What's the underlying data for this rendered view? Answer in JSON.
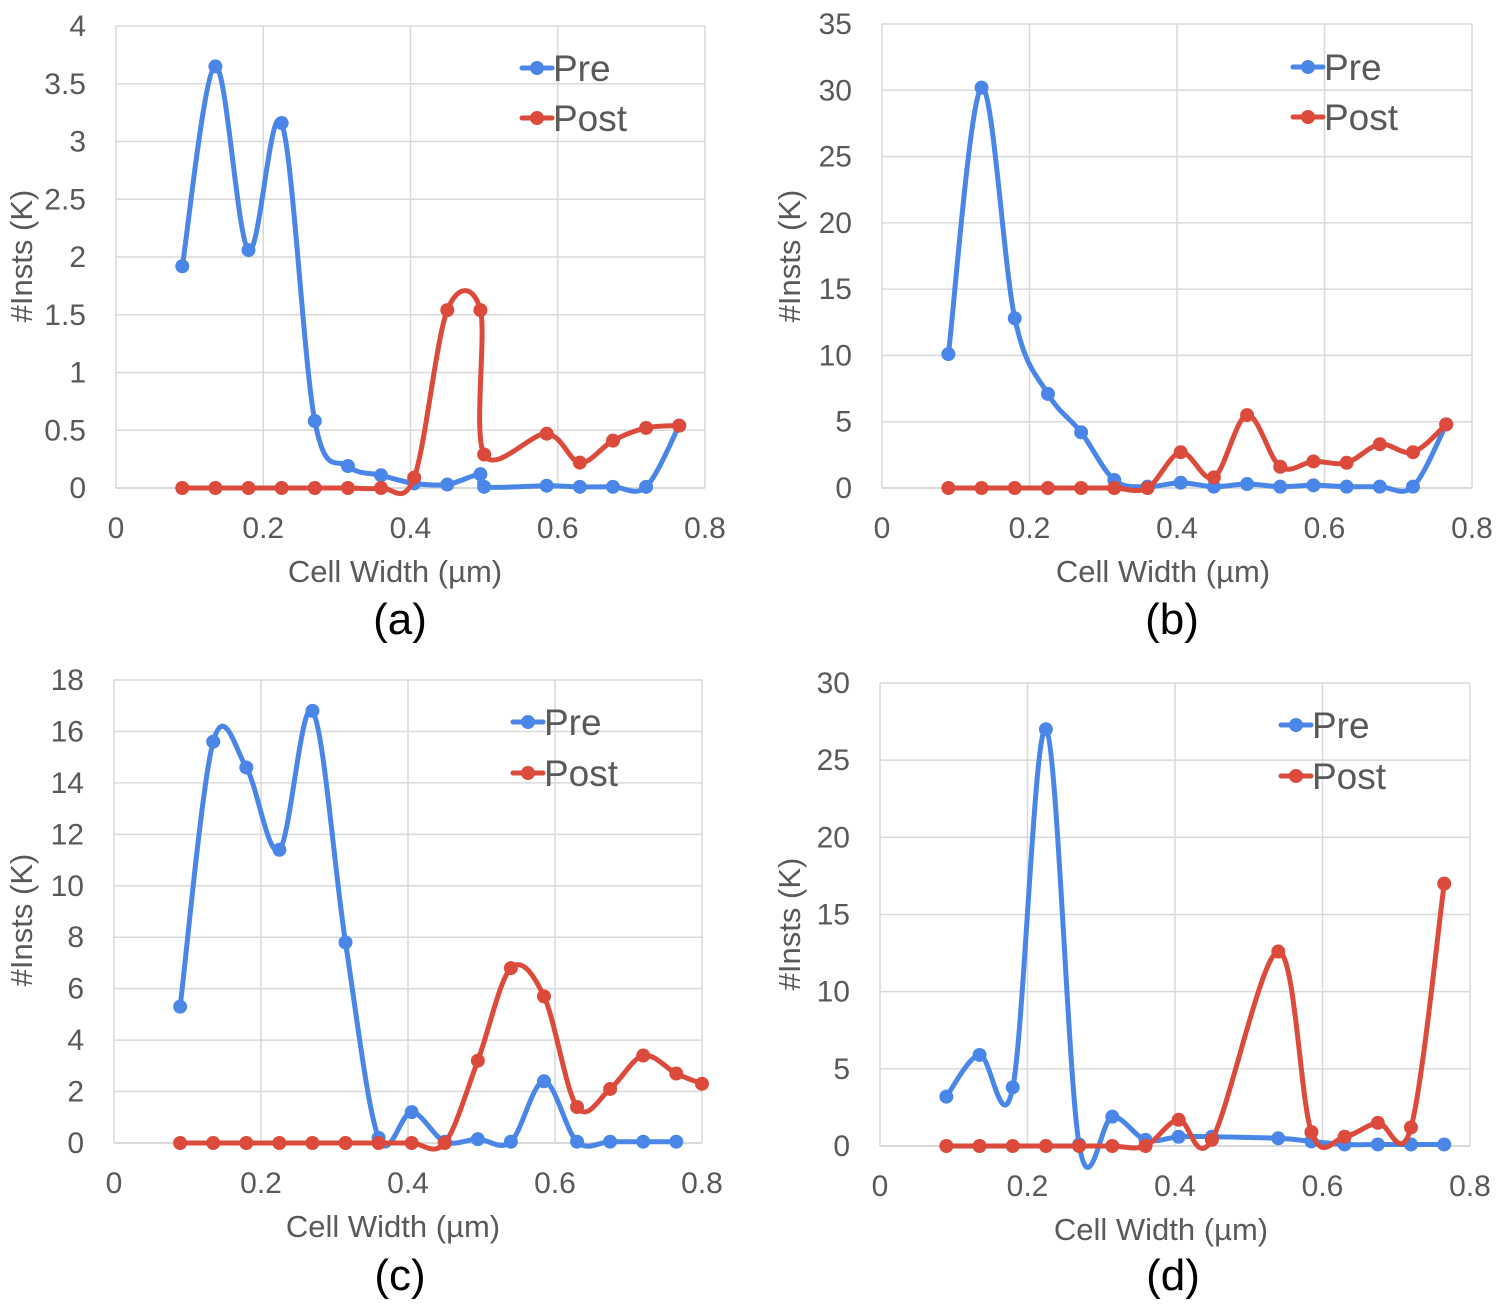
{
  "colors": {
    "pre": "#4a86e8",
    "post": "#dc4a3b"
  },
  "chart_data": [
    {
      "type": "line",
      "caption": "(a)",
      "xlabel": "Cell Width (µm)",
      "ylabel": "#Insts (K)",
      "xlim": [
        0,
        0.8
      ],
      "ylim": [
        0,
        4
      ],
      "x_ticks": [
        "0",
        "0.2",
        "0.4",
        "0.6",
        "0.8"
      ],
      "y_ticks": [
        "0",
        "0.5",
        "1",
        "1.5",
        "2",
        "2.5",
        "3",
        "3.5",
        "4"
      ],
      "legend": [
        "Pre",
        "Post"
      ],
      "series": [
        {
          "name": "Pre",
          "x": [
            0.09,
            0.135,
            0.18,
            0.225,
            0.27,
            0.315,
            0.36,
            0.405,
            0.45,
            0.495,
            0.5,
            0.585,
            0.63,
            0.675,
            0.72,
            0.765
          ],
          "y": [
            1.92,
            3.65,
            2.06,
            3.16,
            0.58,
            0.19,
            0.11,
            0.04,
            0.03,
            0.12,
            0.01,
            0.02,
            0.01,
            0.01,
            0.01,
            0.54
          ]
        },
        {
          "name": "Post",
          "x": [
            0.09,
            0.135,
            0.18,
            0.225,
            0.27,
            0.315,
            0.36,
            0.405,
            0.45,
            0.495,
            0.5,
            0.585,
            0.63,
            0.675,
            0.72,
            0.765
          ],
          "y": [
            0,
            0,
            0,
            0,
            0,
            0,
            0,
            0.09,
            1.54,
            1.54,
            0.29,
            0.47,
            0.22,
            0.41,
            0.52,
            0.54
          ]
        }
      ]
    },
    {
      "type": "line",
      "caption": "(b)",
      "xlabel": "Cell Width (µm)",
      "ylabel": "#Insts (K)",
      "xlim": [
        0,
        0.8
      ],
      "ylim": [
        0,
        35
      ],
      "x_ticks": [
        "0",
        "0.2",
        "0.4",
        "0.6",
        "0.8"
      ],
      "y_ticks": [
        "0",
        "5",
        "10",
        "15",
        "20",
        "25",
        "30",
        "35"
      ],
      "legend": [
        "Pre",
        "Post"
      ],
      "series": [
        {
          "name": "Pre",
          "x": [
            0.09,
            0.135,
            0.18,
            0.225,
            0.27,
            0.315,
            0.36,
            0.405,
            0.45,
            0.495,
            0.54,
            0.585,
            0.63,
            0.675,
            0.72,
            0.765
          ],
          "y": [
            10.1,
            30.2,
            12.8,
            7.1,
            4.2,
            0.6,
            0.1,
            0.4,
            0.1,
            0.3,
            0.1,
            0.2,
            0.1,
            0.1,
            0.1,
            4.8
          ]
        },
        {
          "name": "Post",
          "x": [
            0.09,
            0.135,
            0.18,
            0.225,
            0.27,
            0.315,
            0.36,
            0.405,
            0.45,
            0.495,
            0.54,
            0.585,
            0.63,
            0.675,
            0.72,
            0.765
          ],
          "y": [
            0,
            0,
            0,
            0,
            0,
            0,
            0,
            2.7,
            0.8,
            5.5,
            1.6,
            2.0,
            1.9,
            3.3,
            2.7,
            4.8
          ]
        }
      ]
    },
    {
      "type": "line",
      "caption": "(c)",
      "xlabel": "Cell Width (µm)",
      "ylabel": "#Insts (K)",
      "xlim": [
        0,
        0.8
      ],
      "ylim": [
        0,
        18
      ],
      "x_ticks": [
        "0",
        "0.2",
        "0.4",
        "0.6",
        "0.8"
      ],
      "y_ticks": [
        "0",
        "2",
        "4",
        "6",
        "8",
        "10",
        "12",
        "14",
        "16",
        "18"
      ],
      "legend": [
        "Pre",
        "Post"
      ],
      "series": [
        {
          "name": "Pre",
          "x": [
            0.09,
            0.135,
            0.18,
            0.225,
            0.27,
            0.315,
            0.36,
            0.405,
            0.45,
            0.495,
            0.54,
            0.585,
            0.63,
            0.675,
            0.72,
            0.765
          ],
          "y": [
            5.3,
            15.6,
            14.6,
            11.4,
            16.8,
            7.8,
            0.2,
            1.2,
            0.05,
            0.15,
            0.05,
            2.4,
            0.05,
            0.05,
            0.05,
            0.05
          ]
        },
        {
          "name": "Post",
          "x": [
            0.09,
            0.135,
            0.18,
            0.225,
            0.27,
            0.315,
            0.36,
            0.405,
            0.45,
            0.495,
            0.54,
            0.585,
            0.63,
            0.675,
            0.72,
            0.765,
            0.8
          ],
          "y": [
            0,
            0,
            0,
            0,
            0,
            0,
            0,
            0,
            0,
            3.2,
            6.8,
            5.7,
            1.4,
            2.1,
            3.4,
            2.7,
            2.3
          ]
        }
      ]
    },
    {
      "type": "line",
      "caption": "(d)",
      "xlabel": "Cell Width (µm)",
      "ylabel": "#Insts (K)",
      "xlim": [
        0,
        0.8
      ],
      "ylim": [
        0,
        30
      ],
      "x_ticks": [
        "0",
        "0.2",
        "0.4",
        "0.6",
        "0.8"
      ],
      "y_ticks": [
        "0",
        "5",
        "10",
        "15",
        "20",
        "25",
        "30"
      ],
      "legend": [
        "Pre",
        "Post"
      ],
      "series": [
        {
          "name": "Pre",
          "x": [
            0.09,
            0.135,
            0.18,
            0.225,
            0.27,
            0.315,
            0.36,
            0.405,
            0.45,
            0.54,
            0.585,
            0.63,
            0.675,
            0.72,
            0.765
          ],
          "y": [
            3.2,
            5.9,
            3.8,
            27.0,
            0.1,
            1.9,
            0.4,
            0.6,
            0.6,
            0.5,
            0.3,
            0.1,
            0.1,
            0.1,
            0.1
          ]
        },
        {
          "name": "Post",
          "x": [
            0.09,
            0.135,
            0.18,
            0.225,
            0.27,
            0.315,
            0.36,
            0.405,
            0.45,
            0.54,
            0.585,
            0.63,
            0.675,
            0.72,
            0.765
          ],
          "y": [
            0,
            0,
            0,
            0,
            0,
            0,
            0,
            1.7,
            0.4,
            12.6,
            0.9,
            0.6,
            1.5,
            1.2,
            17.0
          ]
        }
      ]
    }
  ]
}
